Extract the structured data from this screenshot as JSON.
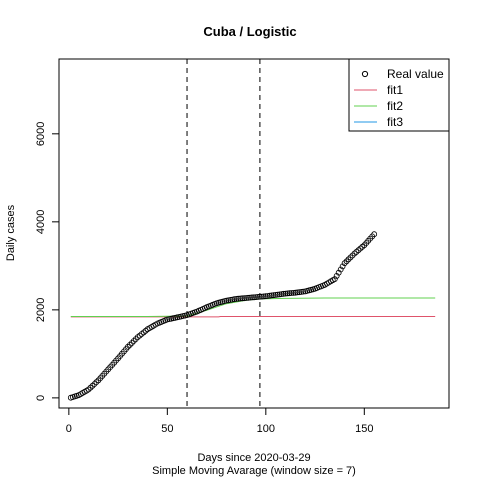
{
  "chart_data": {
    "type": "line",
    "title": "Cuba / Logistic",
    "xlabel": "Days since 2020-03-29",
    "subtitle": "Simple Moving Avarage (window size = 7)",
    "ylabel": "Daily cases",
    "xlim": [
      -5,
      193
    ],
    "ylim": [
      -230,
      7700
    ],
    "xticks": [
      "0",
      "50",
      "100",
      "150"
    ],
    "xtick_values": [
      0,
      50,
      100,
      150
    ],
    "yticks": [
      "0",
      "2000",
      "4000",
      "6000"
    ],
    "ytick_values": [
      0,
      2000,
      4000,
      6000
    ],
    "vlines": [
      60,
      97
    ],
    "legend_position": "top-right",
    "legend": [
      {
        "name": "Real value",
        "symbol": "circle",
        "color": "#000000"
      },
      {
        "name": "fit1",
        "symbol": "line",
        "color": "#DF536B"
      },
      {
        "name": "fit2",
        "symbol": "line",
        "color": "#61D04F"
      },
      {
        "name": "fit3",
        "symbol": "line",
        "color": "#2297E6"
      }
    ],
    "real_value": {
      "x": [
        1,
        5,
        10,
        15,
        20,
        25,
        30,
        35,
        40,
        45,
        50,
        55,
        60,
        65,
        70,
        75,
        80,
        85,
        90,
        95,
        100,
        105,
        110,
        115,
        120,
        125,
        130,
        135,
        140,
        145,
        150,
        155
      ],
      "y": [
        5,
        60,
        190,
        400,
        650,
        900,
        1160,
        1380,
        1560,
        1690,
        1780,
        1830,
        1880,
        1960,
        2060,
        2150,
        2210,
        2250,
        2270,
        2290,
        2310,
        2340,
        2370,
        2390,
        2420,
        2480,
        2570,
        2700,
        3060,
        3280,
        3470,
        3720
      ]
    },
    "fit1": {
      "x": [
        1,
        20,
        40,
        60,
        76,
        77,
        120,
        186
      ],
      "y": [
        1840,
        1840,
        1840,
        1840,
        1840,
        1850,
        1850,
        1850
      ]
    },
    "fit2": {
      "x": [
        1,
        20,
        40,
        60,
        70,
        80,
        90,
        97,
        110,
        130,
        160,
        186
      ],
      "y": [
        1850,
        1850,
        1850,
        1860,
        1990,
        2140,
        2220,
        2250,
        2260,
        2270,
        2270,
        2270
      ]
    },
    "fit3": {
      "x": [],
      "y": []
    }
  }
}
